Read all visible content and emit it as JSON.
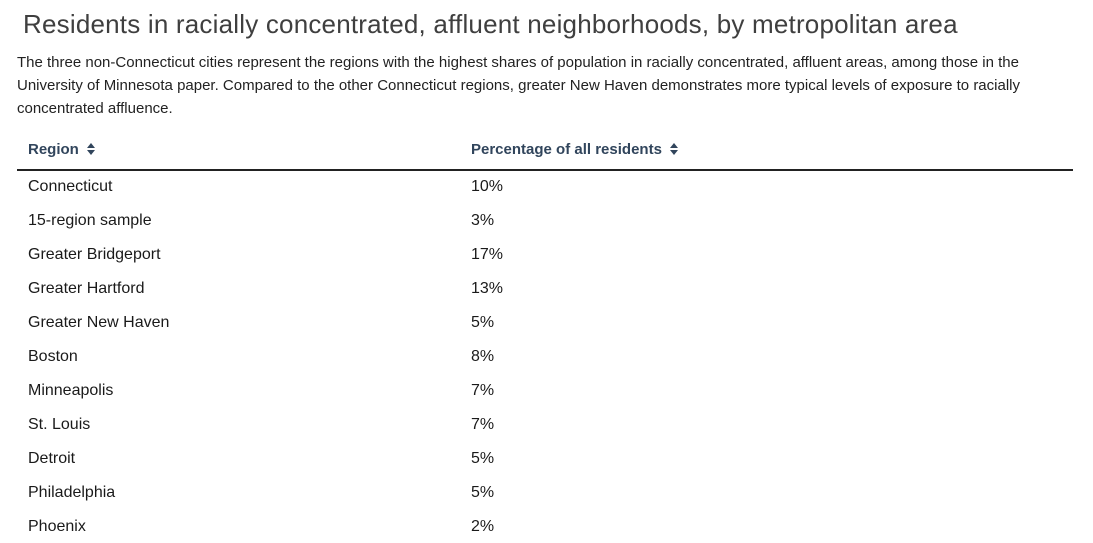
{
  "page": {
    "title": "Residents in racially concentrated, affluent neighborhoods, by metropolitan area",
    "description": "The three non-Connecticut cities represent the regions with the highest shares of population in racially concentrated, affluent areas, among those in the University of Minnesota paper. Compared to the other Connecticut regions, greater New Haven demonstrates more typical levels of exposure to racially concentrated affluence."
  },
  "table": {
    "columns": [
      {
        "label": "Region",
        "icon": "sort-up-down-icon"
      },
      {
        "label": "Percentage of all residents",
        "icon": "sort-up-down-icon"
      }
    ],
    "rows": [
      {
        "region": "Connecticut",
        "percentage": "10%"
      },
      {
        "region": "15-region sample",
        "percentage": "3%"
      },
      {
        "region": "Greater Bridgeport",
        "percentage": "17%"
      },
      {
        "region": "Greater Hartford",
        "percentage": "13%"
      },
      {
        "region": "Greater New Haven",
        "percentage": "5%"
      },
      {
        "region": "Boston",
        "percentage": "8%"
      },
      {
        "region": "Minneapolis",
        "percentage": "7%"
      },
      {
        "region": "St. Louis",
        "percentage": "7%"
      },
      {
        "region": "Detroit",
        "percentage": "5%"
      },
      {
        "region": "Philadelphia",
        "percentage": "5%"
      },
      {
        "region": "Phoenix",
        "percentage": "2%"
      }
    ]
  },
  "colors": {
    "title_text": "#3f3f3f",
    "body_text": "#222222",
    "header_text": "#31455c",
    "row_text": "#1a1a1a",
    "divider": "#222222",
    "background": "#ffffff"
  },
  "chart_data": {
    "type": "table",
    "title": "Residents in racially concentrated, affluent neighborhoods, by metropolitan area",
    "columns": [
      "Region",
      "Percentage of all residents"
    ],
    "categories": [
      "Connecticut",
      "15-region sample",
      "Greater Bridgeport",
      "Greater Hartford",
      "Greater New Haven",
      "Boston",
      "Minneapolis",
      "St. Louis",
      "Detroit",
      "Philadelphia",
      "Phoenix"
    ],
    "values_percent": [
      10,
      3,
      17,
      13,
      5,
      8,
      7,
      7,
      5,
      5,
      2
    ],
    "sortable_columns": true,
    "grid": false,
    "legend": false
  }
}
